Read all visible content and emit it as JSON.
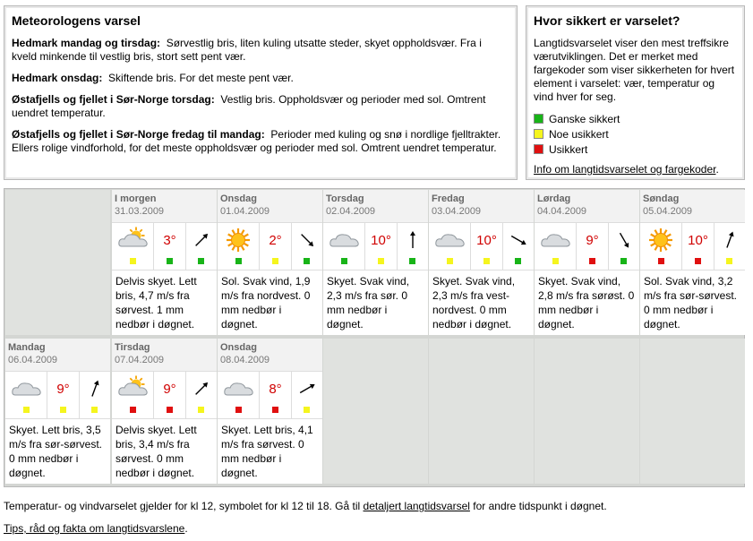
{
  "meteo": {
    "title": "Meteorologens varsel",
    "items": [
      {
        "label": "Hedmark mandag og tirsdag:",
        "text": "Sørvestlig bris, liten kuling utsatte steder, skyet oppholdsvær. Fra i kveld minkende til vestlig bris, stort sett pent vær."
      },
      {
        "label": "Hedmark onsdag:",
        "text": "Skiftende bris. For det meste pent vær."
      },
      {
        "label": "Østafjells og fjellet i Sør-Norge torsdag:",
        "text": "Vestlig bris. Oppholdsvær og perioder med sol. Omtrent uendret temperatur."
      },
      {
        "label": "Østafjells og fjellet i Sør-Norge fredag til mandag:",
        "text": "Perioder med kuling og snø i nordlige fjelltrakter. Ellers rolige vindforhold, for det meste oppholdsvær og perioder med sol. Omtrent uendret temperatur."
      }
    ]
  },
  "certainty": {
    "title": "Hvor sikkert er varselet?",
    "text": "Langtidsvarselet viser den mest treffsikre værutviklingen. Det er merket med fargekoder som viser sikkerheten for hvert element i varselet: vær, temperatur og vind hver for seg.",
    "legend": [
      {
        "label": "Ganske sikkert",
        "color": "#18b418"
      },
      {
        "label": "Noe usikkert",
        "color": "#f5f51e"
      },
      {
        "label": "Usikkert",
        "color": "#e01010"
      }
    ],
    "link": "Info om langtidsvarselet og fargekoder",
    "link_suffix": "."
  },
  "days": [
    {
      "day": "I morgen",
      "date": "31.03.2009",
      "symbol": "partly-cloudy",
      "temp": "3°",
      "wind_dir": 45,
      "cert": [
        "#f5f51e",
        "#18b418",
        "#18b418"
      ],
      "desc": "Delvis skyet. Lett bris, 4,7 m/s fra sørvest. 1 mm nedbør i døgnet."
    },
    {
      "day": "Onsdag",
      "date": "01.04.2009",
      "symbol": "sun",
      "temp": "2°",
      "wind_dir": 135,
      "cert": [
        "#18b418",
        "#f5f51e",
        "#18b418"
      ],
      "desc": "Sol. Svak vind, 1,9 m/s fra nordvest. 0 mm nedbør i døgnet."
    },
    {
      "day": "Torsdag",
      "date": "02.04.2009",
      "symbol": "cloud",
      "temp": "10°",
      "wind_dir": 0,
      "cert": [
        "#18b418",
        "#f5f51e",
        "#18b418"
      ],
      "desc": "Skyet. Svak vind, 2,3 m/s fra sør. 0 mm nedbør i døgnet."
    },
    {
      "day": "Fredag",
      "date": "03.04.2009",
      "symbol": "cloud",
      "temp": "10°",
      "wind_dir": 120,
      "cert": [
        "#f5f51e",
        "#f5f51e",
        "#18b418"
      ],
      "desc": "Skyet. Svak vind, 2,3 m/s fra vest-nordvest. 0 mm nedbør i døgnet."
    },
    {
      "day": "Lørdag",
      "date": "04.04.2009",
      "symbol": "cloud",
      "temp": "9°",
      "wind_dir": 150,
      "cert": [
        "#f5f51e",
        "#e01010",
        "#18b418"
      ],
      "desc": "Skyet. Svak vind, 2,8 m/s fra sørøst. 0 mm nedbør i døgnet."
    },
    {
      "day": "Søndag",
      "date": "05.04.2009",
      "symbol": "sun",
      "temp": "10°",
      "wind_dir": 20,
      "cert": [
        "#e01010",
        "#e01010",
        "#f5f51e"
      ],
      "desc": "Sol. Svak vind, 3,2 m/s fra sør-sørvest. 0 mm nedbør i døgnet."
    },
    {
      "day": "Mandag",
      "date": "06.04.2009",
      "symbol": "cloud",
      "temp": "9°",
      "wind_dir": 20,
      "cert": [
        "#f5f51e",
        "#f5f51e",
        "#f5f51e"
      ],
      "desc": "Skyet. Lett bris, 3,5 m/s fra sør-sørvest. 0 mm nedbør i døgnet."
    },
    {
      "day": "Tirsdag",
      "date": "07.04.2009",
      "symbol": "partly-cloudy",
      "temp": "9°",
      "wind_dir": 45,
      "cert": [
        "#e01010",
        "#e01010",
        "#f5f51e"
      ],
      "desc": "Delvis skyet. Lett bris, 3,4 m/s fra sørvest. 0 mm nedbør i døgnet."
    },
    {
      "day": "Onsdag",
      "date": "08.04.2009",
      "symbol": "cloud",
      "temp": "8°",
      "wind_dir": 60,
      "cert": [
        "#e01010",
        "#e01010",
        "#f5f51e"
      ],
      "desc": "Skyet. Lett bris, 4,1 m/s fra sørvest. 0 mm nedbør i døgnet."
    }
  ],
  "footnote": {
    "before": "Temperatur- og vindvarselet gjelder for kl 12, symbolet for kl 12 til 18. Gå til ",
    "link": "detaljert langtidsvarsel",
    "after": " for andre tidspunkt i døgnet."
  },
  "tips": {
    "link": "Tips, råd og fakta om langtidsvarslene",
    "suffix": "."
  }
}
